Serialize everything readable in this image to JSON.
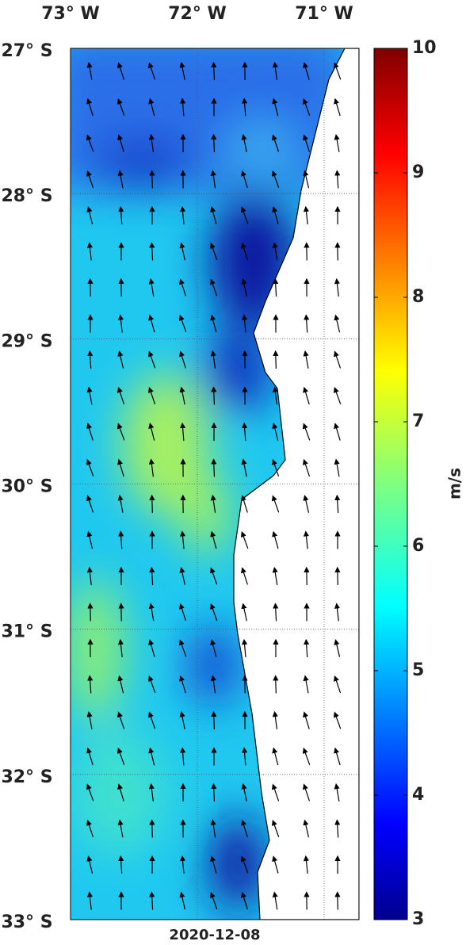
{
  "map": {
    "date": "2020-12-08",
    "xlim": [
      -73,
      -70.725
    ],
    "ylim": [
      -33,
      -27
    ],
    "xticks": [
      {
        "value": -73,
        "label": "73° W"
      },
      {
        "value": -72,
        "label": "72° W"
      },
      {
        "value": -71,
        "label": "71° W"
      }
    ],
    "yticks": [
      {
        "value": -27,
        "label": "27° S"
      },
      {
        "value": -28,
        "label": "28° S"
      },
      {
        "value": -29,
        "label": "29° S"
      },
      {
        "value": -30,
        "label": "30° S"
      },
      {
        "value": -31,
        "label": "31° S"
      },
      {
        "value": -32,
        "label": "32° S"
      },
      {
        "value": -33,
        "label": "33° S"
      }
    ],
    "grid": true,
    "colorbar": {
      "label": "m/s",
      "lim": [
        3,
        10
      ],
      "ticks": [
        3,
        4,
        5,
        6,
        7,
        8,
        9,
        10
      ]
    }
  }
}
